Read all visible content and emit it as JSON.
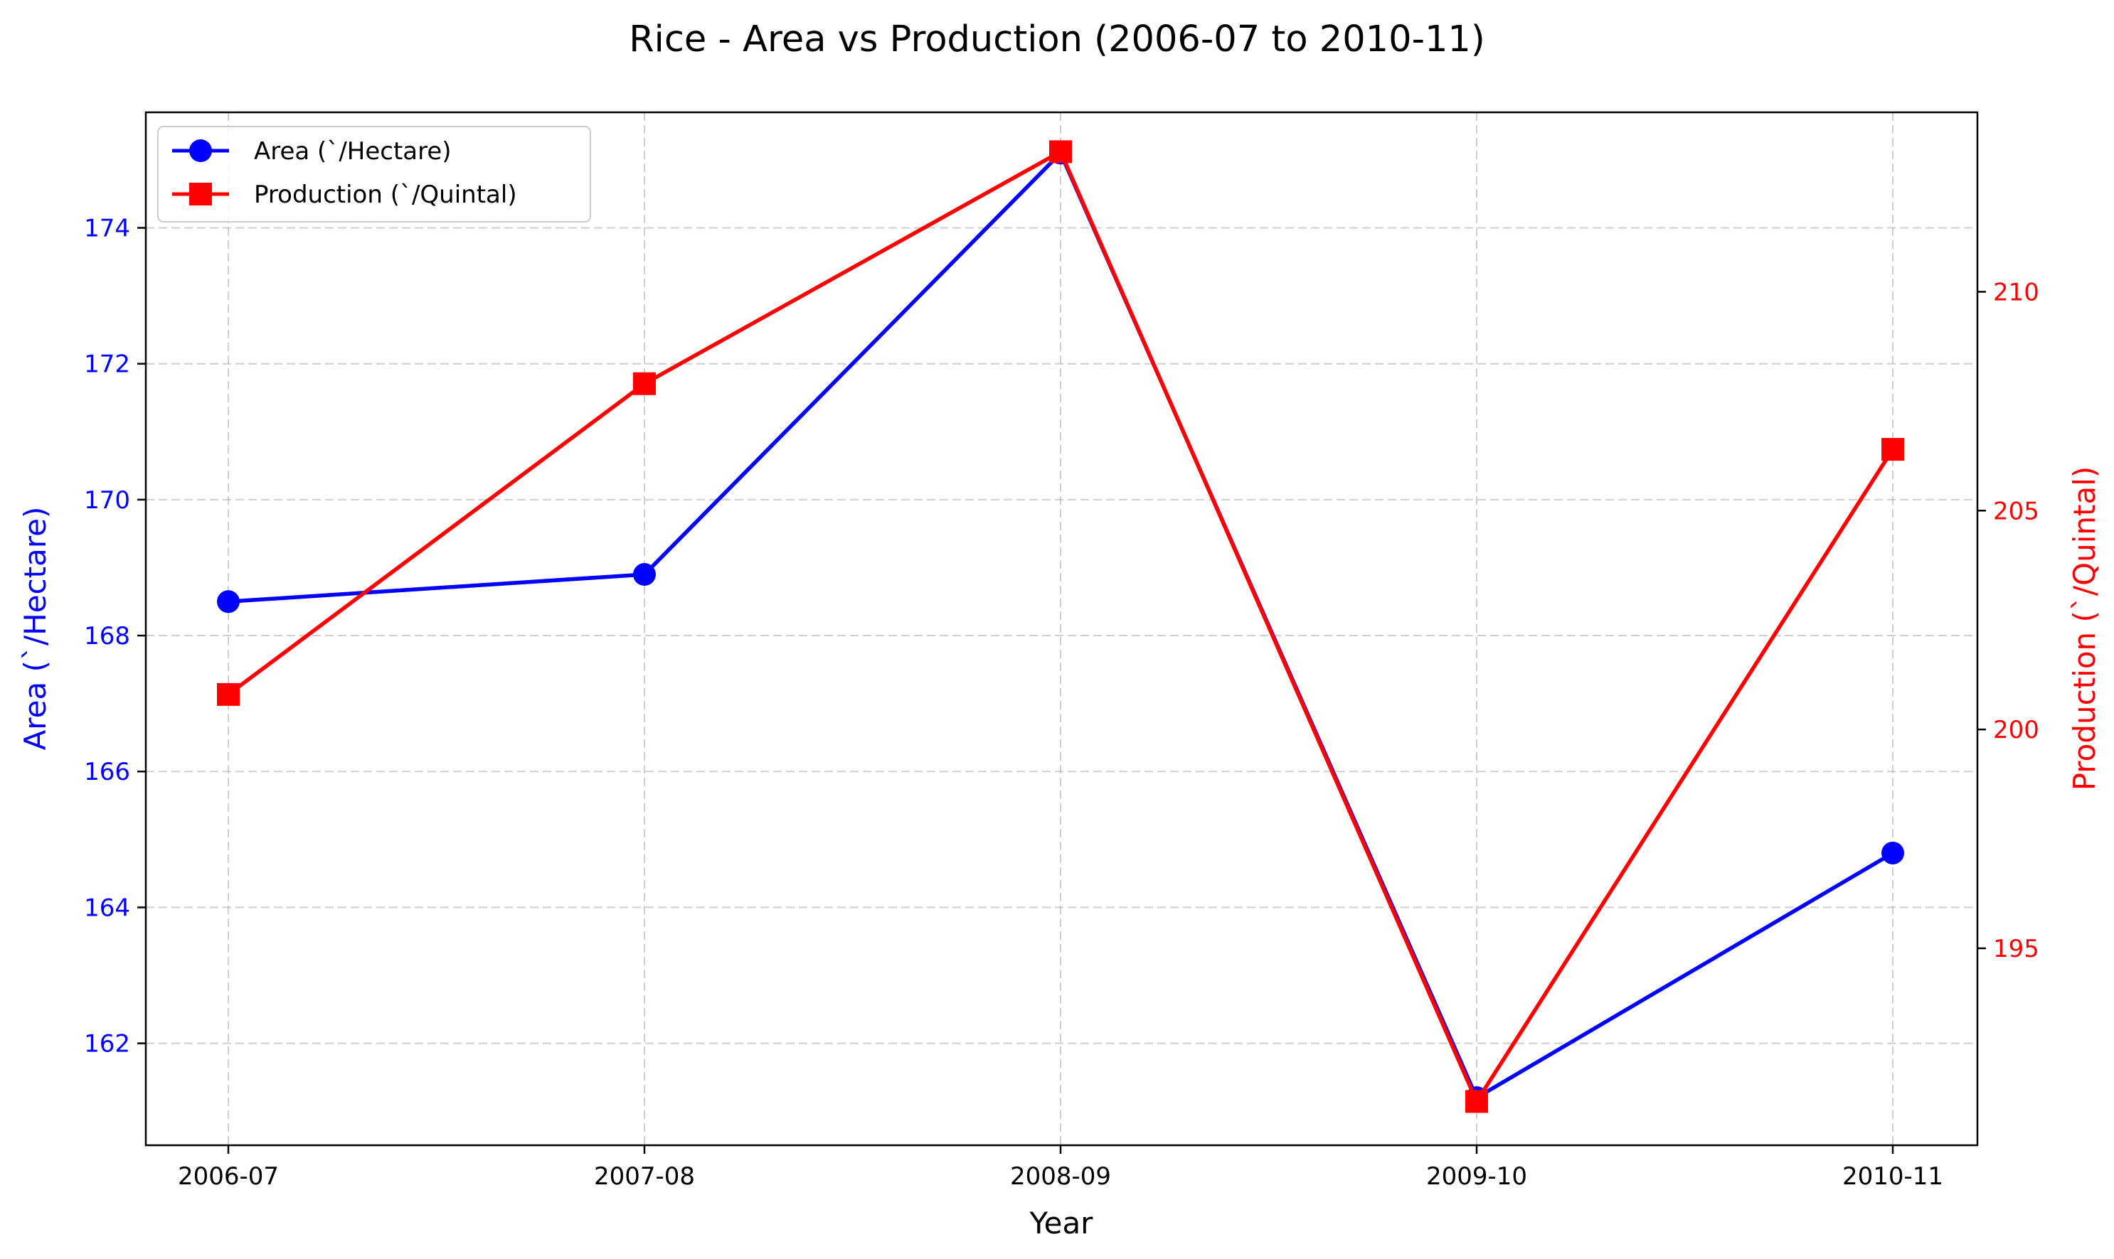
{
  "chart_data": {
    "type": "line",
    "title": "Rice - Area vs Production (2006-07 to 2010-11)",
    "xlabel": "Year",
    "ylabel_left": "Area (`/Hectare)",
    "ylabel_right": "Production (`/Quintal)",
    "categories": [
      "2006-07",
      "2007-08",
      "2008-09",
      "2009-10",
      "2010-11"
    ],
    "y_left": {
      "lim": [
        160.5,
        175.7
      ],
      "ticks": [
        162,
        164,
        166,
        168,
        170,
        172,
        174
      ],
      "color": "#0000ff"
    },
    "y_right": {
      "lim": [
        190.5,
        214.1
      ],
      "ticks": [
        195,
        200,
        205,
        210
      ],
      "color": "#ff0000"
    },
    "grid": true,
    "legend_position": "top-left",
    "series": [
      {
        "name": "Area (`/Hectare)",
        "axis": "left",
        "marker": "circle",
        "color": "#0000ff",
        "values": [
          168.5,
          168.9,
          175.1,
          161.2,
          164.8
        ]
      },
      {
        "name": "Production (`/Quintal)",
        "axis": "right",
        "marker": "square",
        "color": "#ff0000",
        "values": [
          200.8,
          207.9,
          213.2,
          191.5,
          206.4
        ]
      }
    ]
  }
}
